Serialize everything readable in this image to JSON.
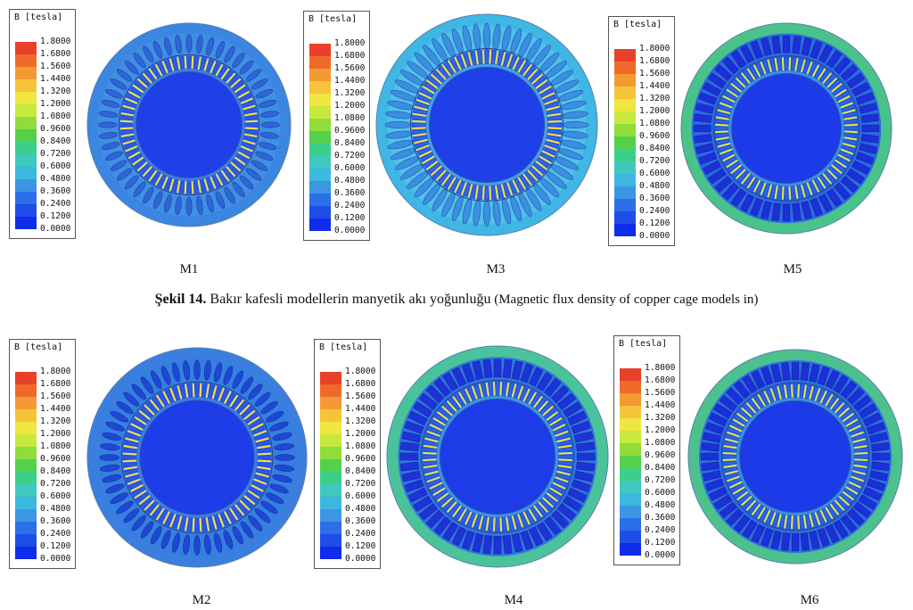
{
  "legend": {
    "title": "B [tesla]",
    "ticks": [
      "1.8000",
      "1.6800",
      "1.5600",
      "1.4400",
      "1.3200",
      "1.2000",
      "1.0800",
      "0.9600",
      "0.8400",
      "0.7200",
      "0.6000",
      "0.4800",
      "0.3600",
      "0.2400",
      "0.1200",
      "0.0000"
    ],
    "colors": [
      "#e8402a",
      "#ef6a2a",
      "#f39a32",
      "#f6c43a",
      "#f0e640",
      "#c7e83c",
      "#8fdc3a",
      "#54d04a",
      "#3ccf8a",
      "#3ec8c0",
      "#3cb8e0",
      "#3b96e4",
      "#2c6fe6",
      "#1f4de8",
      "#0f2cea"
    ]
  },
  "panels": [
    {
      "id": "M1",
      "label": "M1"
    },
    {
      "id": "M3",
      "label": "M3"
    },
    {
      "id": "M5",
      "label": "M5"
    },
    {
      "id": "M2",
      "label": "M2"
    },
    {
      "id": "M4",
      "label": "M4"
    },
    {
      "id": "M6",
      "label": "M6"
    }
  ],
  "caption": {
    "bold": "Şekil 14.",
    "main": " Bakır kafesli modellerin manyetik akı yoğunluğu",
    "english": " (Magnetic flux density of copper cage models in)"
  }
}
